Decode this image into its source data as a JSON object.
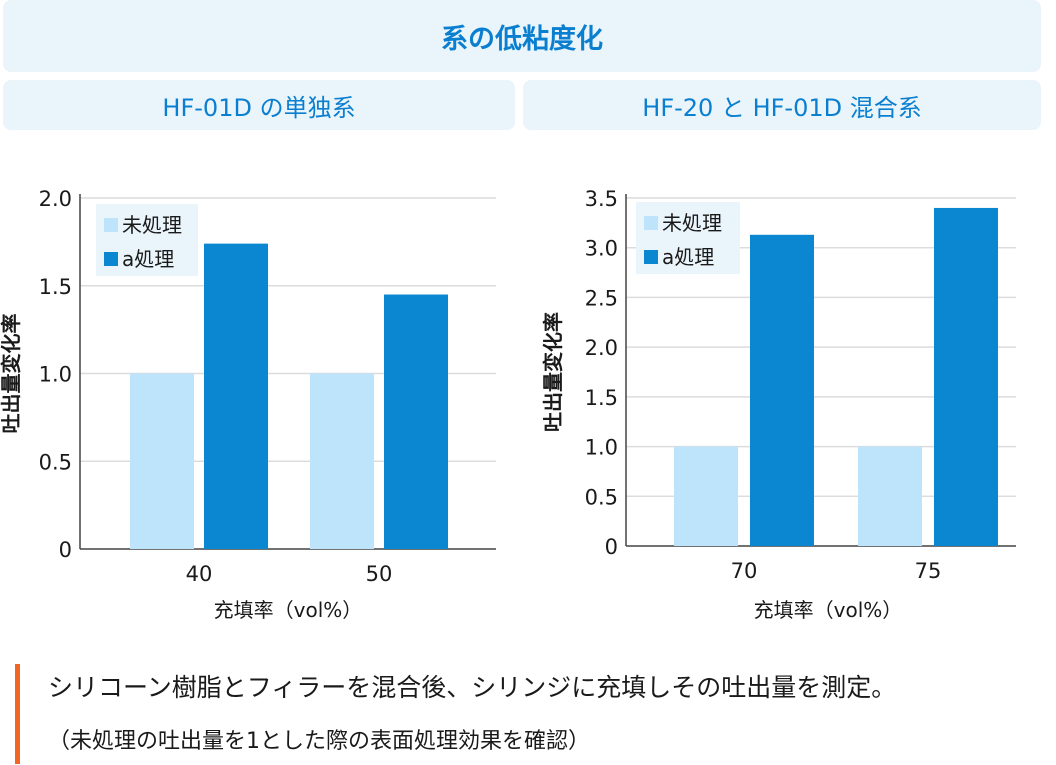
{
  "header": {
    "title": "系の低粘度化",
    "left_panel_title": "HF-01D の単独系",
    "right_panel_title": "HF-20 と HF-01D 混合系"
  },
  "colors": {
    "untreated": "#bde4fa",
    "treated": "#0a87d0",
    "accent": "#f26522",
    "heading": "#0a7fd0"
  },
  "chart_data": [
    {
      "type": "bar",
      "categories": [
        "40",
        "50"
      ],
      "series": [
        {
          "name": "未処理",
          "values": [
            1.0,
            1.0
          ]
        },
        {
          "name": "a処理",
          "values": [
            1.74,
            1.45
          ]
        }
      ],
      "xlabel": "充填率（vol%）",
      "ylabel": "吐出量変化率",
      "ylim": [
        0,
        2.0
      ],
      "yticks": [
        "0",
        "0.5",
        "1.0",
        "1.5",
        "2.0"
      ],
      "grid": true,
      "legend_position": "top-left"
    },
    {
      "type": "bar",
      "categories": [
        "70",
        "75"
      ],
      "series": [
        {
          "name": "未処理",
          "values": [
            1.0,
            1.0
          ]
        },
        {
          "name": "a処理",
          "values": [
            3.13,
            3.4
          ]
        }
      ],
      "xlabel": "充填率（vol%）",
      "ylabel": "吐出量変化率",
      "ylim": [
        0,
        3.5
      ],
      "yticks": [
        "0",
        "0.5",
        "1.0",
        "1.5",
        "2.0",
        "2.5",
        "3.0",
        "3.5"
      ],
      "grid": true,
      "legend_position": "top-left"
    }
  ],
  "note": {
    "main": "シリコーン樹脂とフィラーを混合後、シリンジに充填しその吐出量を測定。",
    "sub": "（未処理の吐出量を1とした際の表面処理効果を確認）"
  }
}
